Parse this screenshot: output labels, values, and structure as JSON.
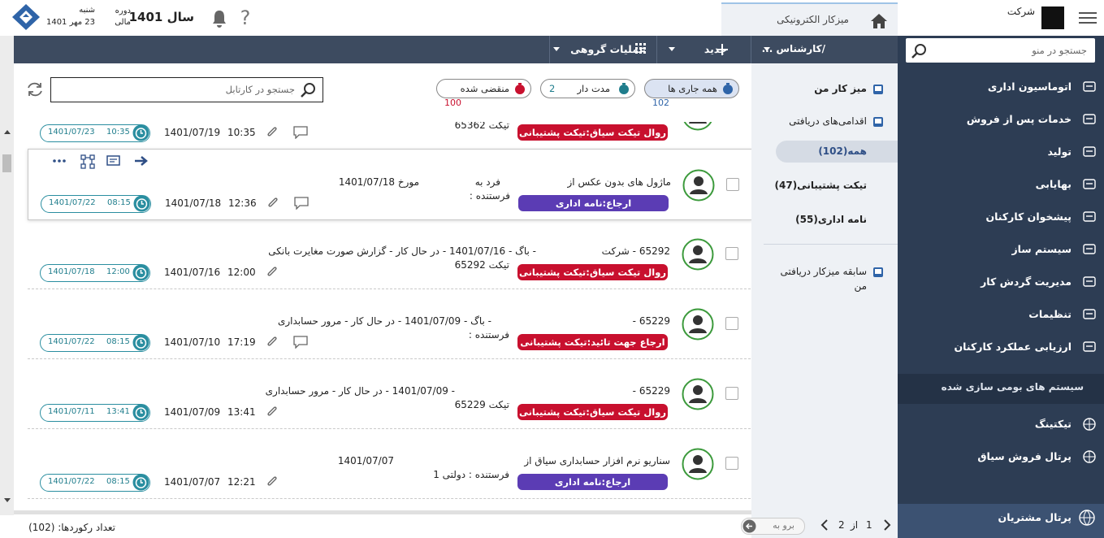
{
  "header": {
    "company": "شرکت",
    "tab": "میزکار الکترونیکی",
    "year": "سال 1401",
    "period": [
      "دوره",
      "مالی"
    ],
    "weekday": "شنبه",
    "date": "23 مهر 1401"
  },
  "sidebar": {
    "search_placeholder": "جستجو در منو",
    "items": [
      "اتوماسیون اداری",
      "خدمات پس از فروش",
      "تولید",
      "بهایابی",
      "پیشخوان کارکنان",
      "سیستم ساز",
      "مدیریت گردش کار",
      "تنظیمات",
      "ارزیابی عملکرد کارکنان"
    ],
    "section_title": "سیستم های بومی سازی شده",
    "section_items": [
      "تیکتینگ",
      "پرتال فروش سیاق"
    ],
    "footer_item": "پرتال مشتریان"
  },
  "subnav": {
    "title": "/کارشناس ...",
    "items": [
      "میز کار من",
      "اقدامی‌های دریافتی"
    ],
    "filters": [
      "همه(102)",
      "تیکت پشتیبانی(47)",
      "نامه اداری(55)"
    ],
    "history": "سابقه میزکار دریافتی من"
  },
  "toolbar": {
    "new": "جدید",
    "group_actions": "عملیات گروهی"
  },
  "filters": [
    {
      "label": "همه جاری ها",
      "count": 102
    },
    {
      "label": "مدت دار",
      "count": 2
    },
    {
      "label": "منقضی شده",
      "count": 100
    }
  ],
  "search_placeholder": "جستجو در کارتابل",
  "rows": [
    {
      "line1": [],
      "line2": "تیکت 65362",
      "tag": "روال تیکت سیاق:تیکت پشتیبانی",
      "tag_color": "#c8102e",
      "time": "10:35",
      "date": "1401/07/19",
      "due_time": "10:35",
      "due_date": "1401/07/23"
    },
    {
      "line1": [
        "ماژول های بدون عکس از",
        "فرد به",
        "مورخ 1401/07/18"
      ],
      "line2": "فرستنده :",
      "tag": "ارجاع:نامه اداری",
      "tag_color": "#5b3cb4",
      "time": "12:36",
      "date": "1401/07/18",
      "due_time": "08:15",
      "due_date": "1401/07/22"
    },
    {
      "line1": [
        "65292 - شرکت",
        "- باگ - 1401/07/16 - در حال کار - گزارش صورت مغایرت بانکی"
      ],
      "line2": "تیکت 65292",
      "tag": "روال تیکت سیاق:تیکت پشتیبانی",
      "tag_color": "#c8102e",
      "time": "12:00",
      "date": "1401/07/16",
      "due_time": "12:00",
      "due_date": "1401/07/18"
    },
    {
      "line1": [
        "65229 -",
        "- باگ - 1401/07/09 - در حال کار - مرور حسابداری"
      ],
      "line2": "فرستنده :",
      "tag": "ارجاع جهت تائید:تیکت پشتیبانی",
      "tag_color": "#c8102e",
      "time": "17:19",
      "date": "1401/07/10",
      "due_time": "08:15",
      "due_date": "1401/07/22"
    },
    {
      "line1": [
        "65229 -",
        "- 1401/07/09 - در حال کار - مرور حسابداری"
      ],
      "line2": "تیکت 65229",
      "tag": "روال تیکت سیاق:تیکت پشتیبانی",
      "tag_color": "#c8102e",
      "time": "13:41",
      "date": "1401/07/09",
      "due_time": "13:41",
      "due_date": "1401/07/11"
    },
    {
      "line1": [
        "سناریو نرم افزار حسابداری سیاق از",
        "1401/07/07"
      ],
      "line2": "فرستنده : دولتی 1",
      "tag": "ارجاع:نامه اداری",
      "tag_color": "#5b3cb4",
      "time": "12:21",
      "date": "1401/07/07",
      "due_time": "08:15",
      "due_date": "1401/07/22"
    }
  ],
  "footer": {
    "records": "تعداد رکوردها: (102)",
    "page": "1",
    "of": "از",
    "pages": "2",
    "goto": "برو به"
  }
}
